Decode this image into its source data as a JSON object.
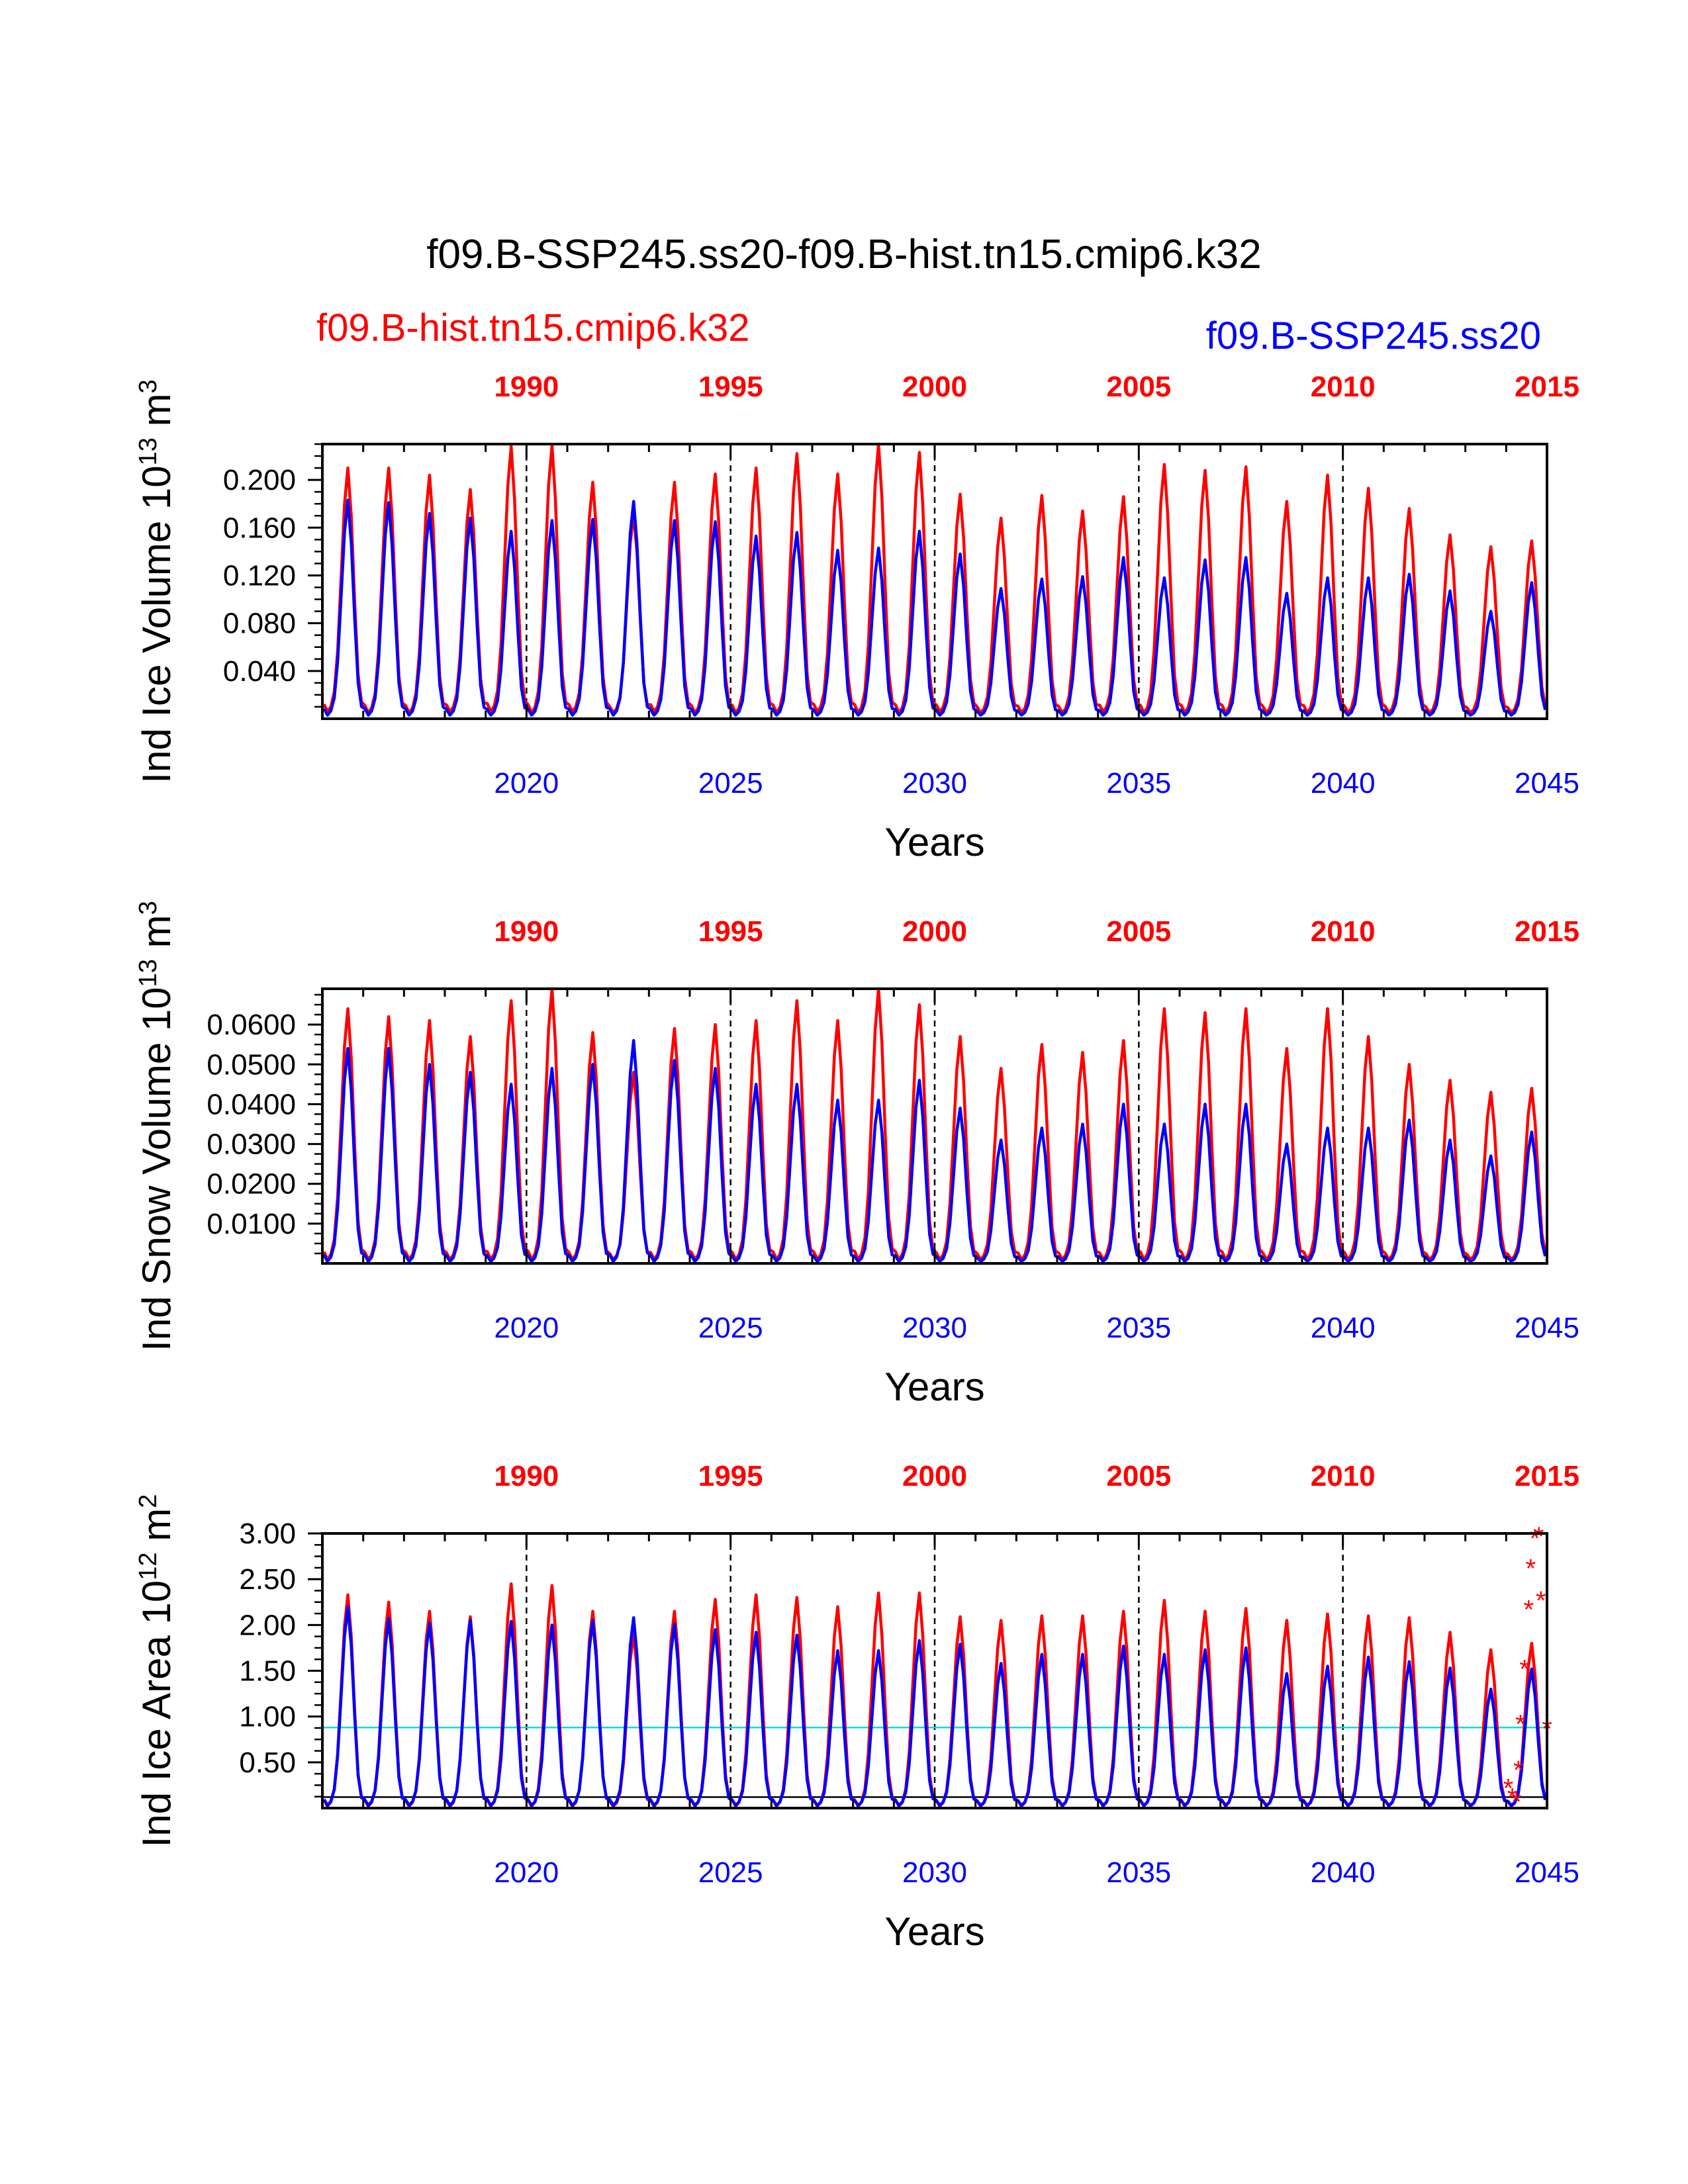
{
  "figure": {
    "title": "f09.B-SSP245.ss20-f09.B-hist.tn15.cmip6.k32",
    "legend_red": "f09.B-hist.tn15.cmip6.k32",
    "legend_blue": "f09.B-SSP245.ss20"
  },
  "chart_data": [
    {
      "type": "line",
      "ylabel": {
        "main": "Ind Ice Volume 10",
        "sup": "13",
        "unit": " m",
        "unit_sup": "3"
      },
      "xlabel": "Years",
      "xlim": [
        2015,
        2045
      ],
      "top_axis_ticks": [
        "1990",
        "1995",
        "2000",
        "2005",
        "2010",
        "2015"
      ],
      "bottom_axis_ticks": [
        "2020",
        "2025",
        "2030",
        "2035",
        "2040",
        "2045"
      ],
      "ylim": [
        0,
        0.23
      ],
      "yticks": [
        0.04,
        0.08,
        0.12,
        0.16,
        0.2
      ],
      "ytick_labels": [
        "0.040",
        "0.080",
        "0.120",
        "0.160",
        "0.200"
      ],
      "series": [
        {
          "name": "f09.B-hist.tn15.cmip6.k32",
          "color": "#ff0000",
          "peaks": [
            0.21,
            0.21,
            0.204,
            0.192,
            0.228,
            0.229,
            0.198,
            0.172,
            0.198,
            0.205,
            0.21,
            0.222,
            0.205,
            0.23,
            0.223,
            0.188,
            0.168,
            0.187,
            0.174,
            0.186,
            0.213,
            0.208,
            0.211,
            0.182,
            0.204,
            0.193,
            0.176,
            0.154,
            0.144,
            0.149
          ],
          "troughs": [
            0.006,
            0.005,
            0.005,
            0.006,
            0.006,
            0.005,
            0.006,
            0.005,
            0.006,
            0.005,
            0.005,
            0.005,
            0.006,
            0.005,
            0.005,
            0.006,
            0.005,
            0.005,
            0.005,
            0.006,
            0.005,
            0.005,
            0.005,
            0.005,
            0.005,
            0.005,
            0.005,
            0.005,
            0.005,
            0.005
          ]
        },
        {
          "name": "f09.B-SSP245.ss20",
          "color": "#0000ff",
          "peaks": [
            0.183,
            0.181,
            0.172,
            0.168,
            0.157,
            0.166,
            0.167,
            0.182,
            0.166,
            0.165,
            0.153,
            0.156,
            0.141,
            0.143,
            0.157,
            0.138,
            0.109,
            0.117,
            0.119,
            0.135,
            0.118,
            0.133,
            0.135,
            0.105,
            0.118,
            0.118,
            0.121,
            0.107,
            0.09,
            0.114
          ],
          "troughs": [
            0.003,
            0.003,
            0.003,
            0.003,
            0.003,
            0.003,
            0.003,
            0.003,
            0.003,
            0.003,
            0.003,
            0.003,
            0.003,
            0.003,
            0.003,
            0.003,
            0.003,
            0.003,
            0.003,
            0.003,
            0.003,
            0.003,
            0.003,
            0.003,
            0.003,
            0.003,
            0.003,
            0.003,
            0.003,
            0.003
          ]
        }
      ],
      "grid": false
    },
    {
      "type": "line",
      "ylabel": {
        "main": "Ind Snow Volume 10",
        "sup": "13",
        "unit": " m",
        "unit_sup": "3"
      },
      "xlabel": "Years",
      "xlim": [
        2015,
        2045
      ],
      "top_axis_ticks": [
        "1990",
        "1995",
        "2000",
        "2005",
        "2010",
        "2015"
      ],
      "bottom_axis_ticks": [
        "2020",
        "2025",
        "2030",
        "2035",
        "2040",
        "2045"
      ],
      "ylim": [
        0,
        0.069
      ],
      "yticks": [
        0.01,
        0.02,
        0.03,
        0.04,
        0.05,
        0.06
      ],
      "ytick_labels": [
        "0.0100",
        "0.0200",
        "0.0300",
        "0.0400",
        "0.0500",
        "0.0600"
      ],
      "series": [
        {
          "name": "f09.B-hist.tn15.cmip6.k32",
          "color": "#ff0000",
          "peaks": [
            0.064,
            0.062,
            0.061,
            0.057,
            0.066,
            0.069,
            0.058,
            0.048,
            0.059,
            0.06,
            0.061,
            0.066,
            0.061,
            0.069,
            0.065,
            0.057,
            0.049,
            0.055,
            0.053,
            0.056,
            0.064,
            0.063,
            0.064,
            0.054,
            0.064,
            0.057,
            0.05,
            0.046,
            0.043,
            0.044
          ],
          "troughs": [
            0.001,
            0.001,
            0.001,
            0.001,
            0.001,
            0.001,
            0.001,
            0.001,
            0.001,
            0.001,
            0.001,
            0.001,
            0.001,
            0.001,
            0.001,
            0.001,
            0.001,
            0.001,
            0.001,
            0.001,
            0.001,
            0.001,
            0.001,
            0.001,
            0.001,
            0.001,
            0.001,
            0.001,
            0.001,
            0.001
          ]
        },
        {
          "name": "f09.B-SSP245.ss20",
          "color": "#0000ff",
          "peaks": [
            0.054,
            0.054,
            0.05,
            0.048,
            0.045,
            0.049,
            0.05,
            0.056,
            0.051,
            0.049,
            0.045,
            0.045,
            0.041,
            0.041,
            0.046,
            0.039,
            0.031,
            0.034,
            0.035,
            0.04,
            0.035,
            0.04,
            0.04,
            0.03,
            0.034,
            0.034,
            0.036,
            0.031,
            0.027,
            0.033
          ],
          "troughs": [
            0.0005,
            0.0005,
            0.0005,
            0.0005,
            0.0005,
            0.0005,
            0.0005,
            0.0005,
            0.0005,
            0.0005,
            0.0005,
            0.0005,
            0.0005,
            0.0005,
            0.0005,
            0.0005,
            0.0005,
            0.0005,
            0.0005,
            0.0005,
            0.0005,
            0.0005,
            0.0005,
            0.0005,
            0.0005,
            0.0005,
            0.0005,
            0.0005,
            0.0005,
            0.0005
          ]
        }
      ],
      "grid": false
    },
    {
      "type": "line",
      "ylabel": {
        "main": "Ind Ice Area 10",
        "sup": "12",
        "unit": " m",
        "unit_sup": "2"
      },
      "xlabel": "Years",
      "xlim": [
        2015,
        2045
      ],
      "top_axis_ticks": [
        "1990",
        "1995",
        "2000",
        "2005",
        "2010",
        "2015"
      ],
      "bottom_axis_ticks": [
        "2020",
        "2025",
        "2030",
        "2035",
        "2040",
        "2045"
      ],
      "ylim": [
        0,
        3.0
      ],
      "yticks": [
        0.5,
        1.0,
        1.5,
        2.0,
        2.5,
        3.0
      ],
      "ytick_labels": [
        "0.50",
        "1.00",
        "1.50",
        "2.00",
        "2.50",
        "3.00"
      ],
      "series": [
        {
          "name": "f09.B-hist.tn15.cmip6.k32",
          "color": "#ff0000",
          "peaks": [
            2.33,
            2.25,
            2.15,
            2.09,
            2.45,
            2.43,
            2.15,
            1.9,
            2.15,
            2.28,
            2.33,
            2.3,
            2.2,
            2.35,
            2.35,
            2.09,
            2.05,
            2.1,
            2.1,
            2.15,
            2.27,
            2.15,
            2.18,
            2.05,
            2.12,
            2.1,
            2.08,
            1.92,
            1.73,
            1.8
          ],
          "troughs": [
            0.02,
            0.02,
            0.02,
            0.02,
            0.02,
            0.02,
            0.02,
            0.02,
            0.02,
            0.02,
            0.02,
            0.02,
            0.02,
            0.02,
            0.02,
            0.02,
            0.02,
            0.02,
            0.02,
            0.02,
            0.02,
            0.02,
            0.02,
            0.02,
            0.02,
            0.02,
            0.02,
            0.02,
            0.02,
            0.02
          ]
        },
        {
          "name": "f09.B-SSP245.ss20",
          "color": "#0000ff",
          "peaks": [
            2.2,
            2.07,
            2.02,
            2.05,
            2.04,
            2.0,
            2.05,
            2.08,
            2.01,
            1.95,
            1.92,
            1.89,
            1.72,
            1.72,
            1.83,
            1.79,
            1.58,
            1.68,
            1.68,
            1.77,
            1.68,
            1.73,
            1.75,
            1.47,
            1.55,
            1.65,
            1.6,
            1.53,
            1.3,
            1.52
          ],
          "troughs": [
            0.03,
            0.03,
            0.03,
            0.03,
            0.03,
            0.03,
            0.03,
            0.03,
            0.03,
            0.03,
            0.03,
            0.03,
            0.03,
            0.03,
            0.03,
            0.03,
            0.03,
            0.03,
            0.03,
            0.03,
            0.03,
            0.03,
            0.03,
            0.03,
            0.03,
            0.03,
            0.03,
            0.03,
            0.03,
            0.03
          ]
        }
      ],
      "reference_lines": [
        {
          "y": 0.88,
          "color": "#00dddd"
        },
        {
          "y": 0.12,
          "color": "#000000"
        }
      ],
      "markers": {
        "symbol": "*",
        "color": "#ff0000",
        "points": [
          {
            "x": 2044.05,
            "y": 0.25
          },
          {
            "x": 2044.15,
            "y": 0.15
          },
          {
            "x": 2044.25,
            "y": 0.1
          },
          {
            "x": 2044.3,
            "y": 0.45
          },
          {
            "x": 2044.35,
            "y": 0.95
          },
          {
            "x": 2044.45,
            "y": 1.55
          },
          {
            "x": 2044.55,
            "y": 2.2
          },
          {
            "x": 2044.6,
            "y": 2.65
          },
          {
            "x": 2044.7,
            "y": 2.98
          },
          {
            "x": 2044.8,
            "y": 3.0
          },
          {
            "x": 2044.85,
            "y": 2.3
          },
          {
            "x": 2045.0,
            "y": 0.9
          }
        ]
      },
      "grid": false
    }
  ]
}
